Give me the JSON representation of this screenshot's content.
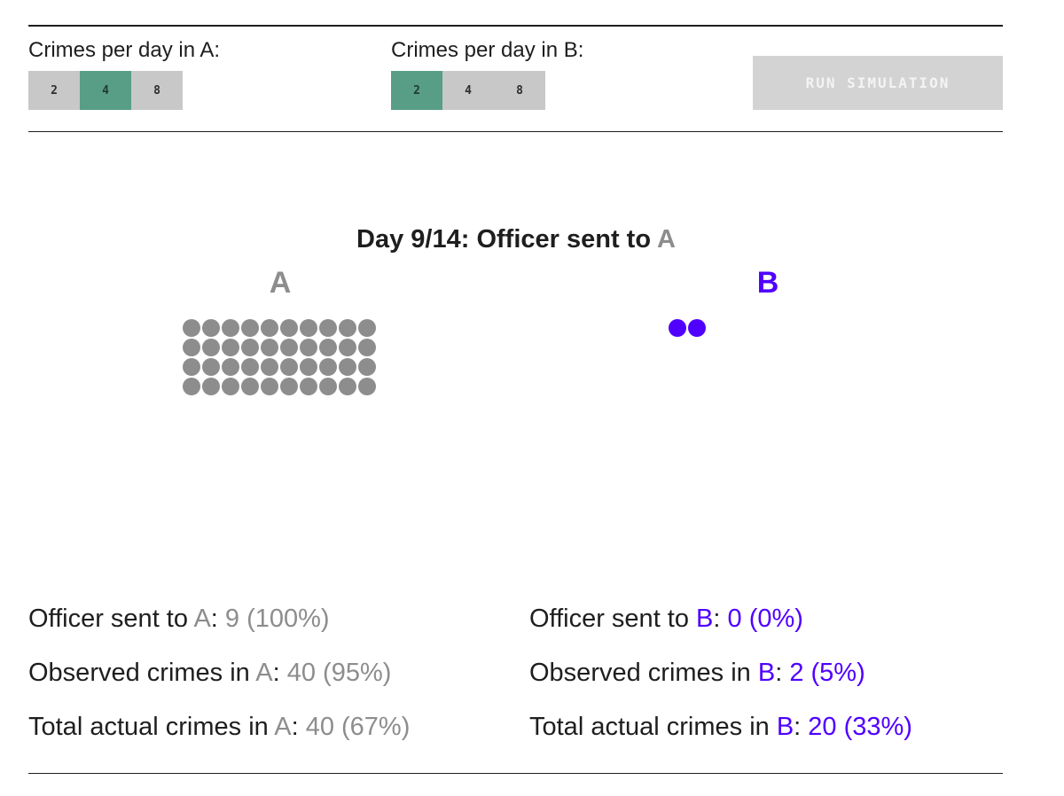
{
  "controls": {
    "a": {
      "label": "Crimes per day in A:",
      "options": [
        "2",
        "4",
        "8"
      ],
      "selected_index": 1
    },
    "b": {
      "label": "Crimes per day in B:",
      "options": [
        "2",
        "4",
        "8"
      ],
      "selected_index": 0
    },
    "run_label": "RUN SIMULATION"
  },
  "simulation": {
    "title_prefix": "Day 9/14: Officer sent to ",
    "title_region": "A",
    "region_a": {
      "label": "A",
      "dot_count": 40,
      "dot_color": "#8d8d8d"
    },
    "region_b": {
      "label": "B",
      "dot_count": 2,
      "dot_color": "#5000ff"
    }
  },
  "stats": {
    "a": {
      "sent": {
        "prefix": "Officer sent to ",
        "region": "A",
        "value": "9 (100%)"
      },
      "observed": {
        "prefix": "Observed crimes in ",
        "region": "A",
        "value": "40 (95%)"
      },
      "total": {
        "prefix": "Total actual crimes in ",
        "region": "A",
        "value": "40 (67%)"
      }
    },
    "b": {
      "sent": {
        "prefix": "Officer sent to ",
        "region": "B",
        "value": "0 (0%)"
      },
      "observed": {
        "prefix": "Observed crimes in ",
        "region": "B",
        "value": "2 (5%)"
      },
      "total": {
        "prefix": "Total actual crimes in ",
        "region": "B",
        "value": "20 (33%)"
      }
    }
  },
  "colors": {
    "accent_green": "#589e86",
    "region_a": "#8d8d8d",
    "region_b": "#5000ff"
  }
}
